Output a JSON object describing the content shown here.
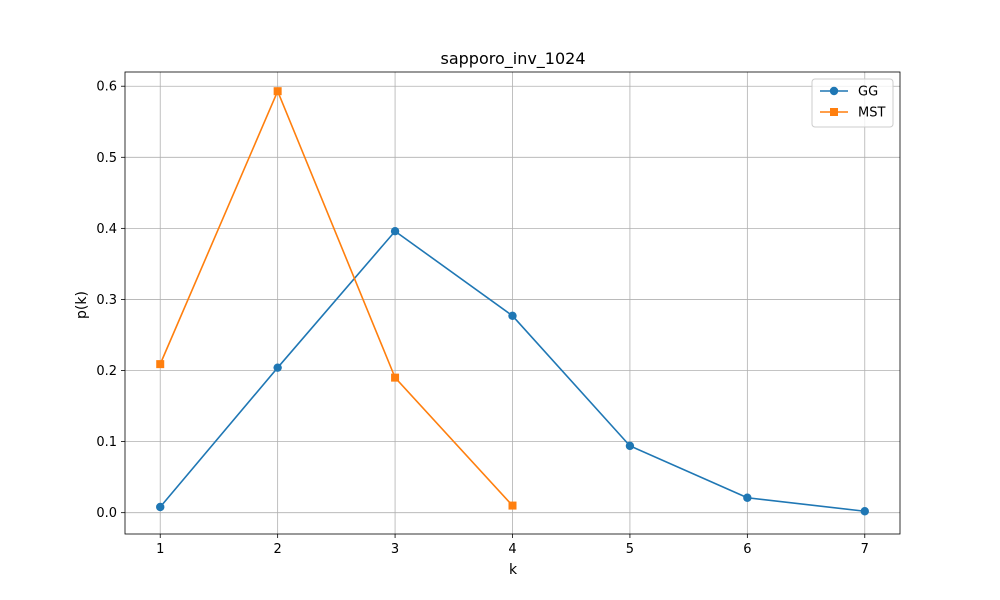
{
  "chart_data": {
    "type": "line",
    "title": "sapporo_inv_1024",
    "xlabel": "k",
    "ylabel": "p(k)",
    "x_ticks": [
      "1",
      "2",
      "3",
      "4",
      "5",
      "6",
      "7"
    ],
    "y_ticks": [
      "0.0",
      "0.1",
      "0.2",
      "0.3",
      "0.4",
      "0.5",
      "0.6"
    ],
    "xlim": [
      0.7,
      7.3
    ],
    "ylim": [
      -0.03,
      0.62
    ],
    "grid": true,
    "legend_position": "top-right",
    "series": [
      {
        "name": "GG",
        "color": "#1f77b4",
        "marker": "circle",
        "x": [
          1,
          2,
          3,
          4,
          5,
          6,
          7
        ],
        "values": [
          0.008,
          0.204,
          0.396,
          0.277,
          0.094,
          0.021,
          0.002
        ]
      },
      {
        "name": "MST",
        "color": "#ff7f0e",
        "marker": "square",
        "x": [
          1,
          2,
          3,
          4
        ],
        "values": [
          0.209,
          0.593,
          0.19,
          0.01
        ]
      }
    ]
  }
}
